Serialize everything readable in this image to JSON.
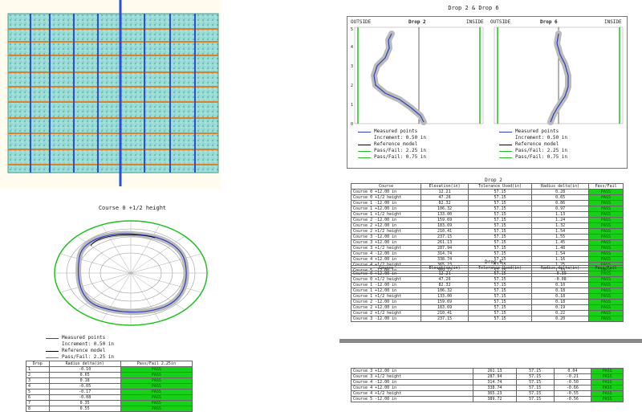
{
  "drop_chart": {
    "title": "Drop 2 & Drop 6",
    "panels": [
      {
        "title": "Drop 2",
        "left_label": "OUTSIDE",
        "right_label": "INSIDE"
      },
      {
        "title": "Drop 6",
        "left_label": "OUTSIDE",
        "right_label": "INSIDE"
      }
    ],
    "y_ticks": [
      "0",
      "1",
      "2",
      "3",
      "4",
      "5"
    ],
    "legend": [
      {
        "label": "Measured points",
        "color": "#3040c0"
      },
      {
        "label": "Increment: 0.50 in",
        "color": "#ffffff"
      },
      {
        "label": "Reference model",
        "color": "#000000"
      },
      {
        "label": "Pass/Fail: 2.25 in",
        "color": "#20c020"
      },
      {
        "label": "Pass/Fail: 0.75 in",
        "color": "#20c020"
      }
    ]
  },
  "course_chart": {
    "title": "Course 0 +1/2 height",
    "legend": [
      {
        "label": "Measured points",
        "color": "#3040c0"
      },
      {
        "label": "Increment: 0.50 in",
        "color": "#ffffff"
      },
      {
        "label": "Reference model",
        "color": "#000000"
      },
      {
        "label": "Pass/Fail: 2.25 in",
        "color": "#20c020"
      }
    ]
  },
  "drop_table": {
    "headers": [
      "Drop",
      "Radius delta(in)",
      "Pass/Fail 2.25in"
    ],
    "rows": [
      [
        "1",
        "-0.10",
        "PASS"
      ],
      [
        "2",
        "0.65",
        "PASS"
      ],
      [
        "3",
        "0.18",
        "PASS"
      ],
      [
        "4",
        "-0.05",
        "PASS"
      ],
      [
        "5",
        "-0.17",
        "PASS"
      ],
      [
        "6",
        "-0.08",
        "PASS"
      ],
      [
        "7",
        "0.35",
        "PASS"
      ],
      [
        "8",
        "0.55",
        "PASS"
      ]
    ]
  },
  "table_drop2": {
    "caption": "Drop 2",
    "headers": [
      "Course",
      "Elevation(in)",
      "Tolerance Used(in)",
      "Radius delta(in)",
      "Pass/Fail"
    ],
    "rows": [
      [
        "Course 0 +12.00 in",
        "12.21",
        "57.15",
        "0.28",
        "PASS"
      ],
      [
        "Course 0 +1/2 height",
        "47.26",
        "57.15",
        "0.65",
        "PASS"
      ],
      [
        "Course 1 -12.00 in",
        "82.32",
        "57.15",
        "0.86",
        "PASS"
      ],
      [
        "Course 1 +12.00 in",
        "106.32",
        "57.15",
        "0.97",
        "PASS"
      ],
      [
        "Course 1 +1/2 height",
        "133.00",
        "57.15",
        "1.13",
        "PASS"
      ],
      [
        "Course 2 -12.00 in",
        "159.69",
        "57.15",
        "1.24",
        "PASS"
      ],
      [
        "Course 2 +12.00 in",
        "183.69",
        "57.15",
        "1.32",
        "PASS"
      ],
      [
        "Course 2 +1/2 height",
        "210.41",
        "57.15",
        "1.54",
        "PASS"
      ],
      [
        "Course 3 -12.00 in",
        "237.15",
        "57.15",
        "1.55",
        "PASS"
      ],
      [
        "Course 3 +12.00 in",
        "261.13",
        "57.15",
        "1.45",
        "PASS"
      ],
      [
        "Course 3 +1/2 height",
        "287.94",
        "57.15",
        "1.48",
        "PASS"
      ],
      [
        "Course 4 -12.00 in",
        "314.74",
        "57.15",
        "1.54",
        "PASS"
      ],
      [
        "Course 4 +12.00 in",
        "338.74",
        "57.15",
        "1.16",
        "PASS"
      ],
      [
        "Course 4 +1/2 height",
        "365.23",
        "57.15",
        "1.25",
        "PASS"
      ],
      [
        "Course 5 -12.00 in",
        "389.72",
        "57.15",
        "1.33",
        "PASS"
      ]
    ]
  },
  "table_drop6": {
    "caption": "Drop 6",
    "headers": [
      "Course",
      "Elevation(in)",
      "Tolerance Used(in)",
      "Radius delta(in)",
      "Pass/Fail"
    ],
    "rows": [
      [
        "Course 0 +12.00 in",
        "12.21",
        "57.15",
        "-0.39",
        "PASS"
      ],
      [
        "Course 0 +1/2 height",
        "47.26",
        "57.15",
        "-0.08",
        "PASS"
      ],
      [
        "Course 1 -12.00 in",
        "82.32",
        "57.15",
        "0.10",
        "PASS"
      ],
      [
        "Course 1 +12.00 in",
        "106.32",
        "57.15",
        "0.18",
        "PASS"
      ],
      [
        "Course 1 +1/2 height",
        "133.00",
        "57.15",
        "0.18",
        "PASS"
      ],
      [
        "Course 2 -12.00 in",
        "159.69",
        "57.15",
        "0.18",
        "PASS"
      ],
      [
        "Course 2 +12.00 in",
        "183.69",
        "57.15",
        "0.19",
        "PASS"
      ],
      [
        "Course 2 +1/2 height",
        "210.41",
        "57.15",
        "0.22",
        "PASS"
      ],
      [
        "Course 3 -12.00 in",
        "237.15",
        "57.15",
        "0.20",
        "PASS"
      ]
    ]
  },
  "table_drop6_cont": {
    "rows": [
      [
        "Course 3 +12.00 in",
        "261.13",
        "57.15",
        "0.04",
        "PASS"
      ],
      [
        "Course 3 +1/2 height",
        "287.94",
        "57.15",
        "-0.21",
        "PASS"
      ],
      [
        "Course 4 -12.00 in",
        "314.74",
        "57.15",
        "-0.50",
        "PASS"
      ],
      [
        "Course 4 +12.00 in",
        "338.74",
        "57.15",
        "-0.66",
        "PASS"
      ],
      [
        "Course 4 +1/2 height",
        "365.23",
        "57.15",
        "-0.55",
        "PASS"
      ],
      [
        "Course 5 -12.00 in",
        "389.72",
        "57.15",
        "-0.56",
        "PASS"
      ]
    ]
  }
}
